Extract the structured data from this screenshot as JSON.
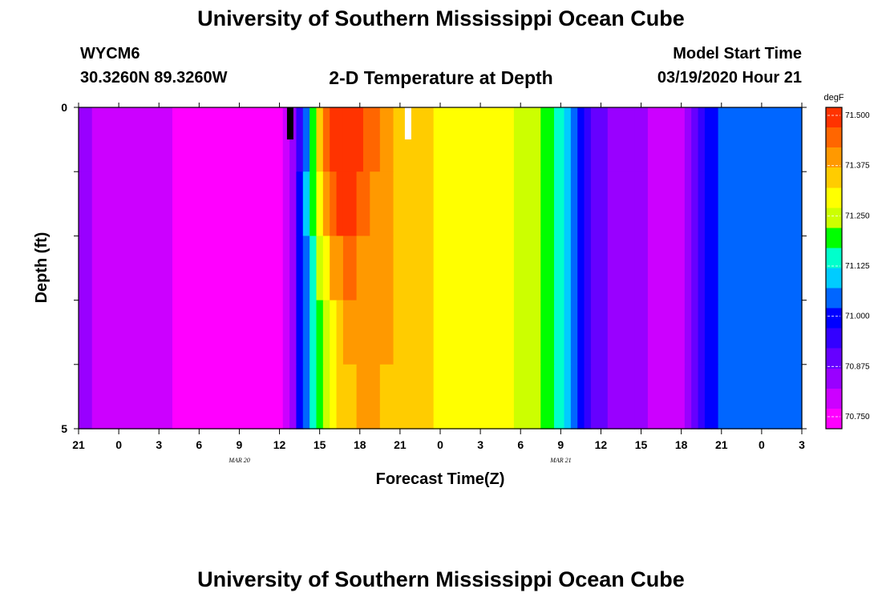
{
  "header": {
    "title": "University of Southern Mississippi Ocean Cube",
    "station_id": "WYCM6",
    "station_coords": "30.3260N 89.3260W",
    "subtitle": "2-D Temperature at Depth",
    "start_label": "Model Start Time",
    "start_value": "03/19/2020 Hour 21"
  },
  "footer": {
    "title": "University of Southern Mississippi Ocean Cube"
  },
  "colors": {
    "palette": [
      "#ff00ff",
      "#cc00ff",
      "#9900ff",
      "#6600ff",
      "#3300ff",
      "#0000ff",
      "#0066ff",
      "#00ccff",
      "#00ffcc",
      "#00ff00",
      "#ccff00",
      "#ffff00",
      "#ffcc00",
      "#ff9900",
      "#ff6600",
      "#ff3300"
    ]
  },
  "chart_data": {
    "type": "heatmap",
    "xlabel": "Forecast Time(Z)",
    "ylabel": "Depth (ft)",
    "ylim": [
      0,
      5
    ],
    "y_ticks": [
      "0",
      "5"
    ],
    "x_tick_labels": [
      "21",
      "0",
      "3",
      "6",
      "9",
      "12",
      "15",
      "18",
      "21",
      "0",
      "3",
      "6",
      "9",
      "12",
      "15",
      "18",
      "21",
      "0",
      "3"
    ],
    "x_tick_hours": [
      0,
      3,
      6,
      9,
      12,
      15,
      18,
      21,
      24,
      27,
      30,
      33,
      36,
      39,
      42,
      45,
      48,
      51,
      54
    ],
    "date_labels": [
      {
        "text": "MAR 20",
        "hour": 15
      },
      {
        "text": "MAR 21",
        "hour": 39
      }
    ],
    "colorbar": {
      "unit": "degF",
      "ticks": [
        "71.500",
        "71.375",
        "71.250",
        "71.125",
        "71.000",
        "70.875",
        "70.750"
      ],
      "min": 70.72,
      "max": 71.52
    },
    "depth_layers": [
      0,
      0.5,
      1.5,
      2.5,
      3.5,
      4.5
    ],
    "hours": [
      0,
      2,
      4,
      6,
      8,
      10,
      12,
      14,
      15,
      15.5,
      16,
      16.5,
      17,
      17.5,
      18,
      18.5,
      19,
      19.5,
      20,
      20.5,
      21,
      21.5,
      22,
      23,
      24,
      25,
      26,
      27,
      28,
      29,
      30,
      31,
      32,
      33,
      34,
      35,
      36,
      36.5,
      37,
      37.5,
      38,
      38.5,
      39,
      40,
      41,
      42,
      43,
      44,
      45,
      45.5,
      46,
      46.5,
      47,
      47.5,
      48,
      49,
      50,
      51,
      52,
      53,
      54
    ],
    "values": [
      [
        70.84,
        70.82,
        70.8,
        70.79,
        70.77,
        70.76,
        70.74,
        70.73,
        70.73,
        70.79,
        70.86,
        70.95,
        71.06,
        71.21,
        71.35,
        71.46,
        71.49,
        71.5,
        71.5,
        71.49,
        71.47,
        71.45,
        71.42,
        71.38,
        71.36,
        71.34,
        71.33,
        71.32,
        71.31,
        71.3,
        71.3,
        71.29,
        71.28,
        71.26,
        71.22,
        71.17,
        71.12,
        71.08,
        71.04,
        71.01,
        70.96,
        70.91,
        70.88,
        70.86,
        70.85,
        70.83,
        70.82,
        70.81,
        70.82,
        70.86,
        70.9,
        70.94,
        70.98,
        71.01,
        71.03,
        71.05,
        71.05,
        71.05,
        71.05,
        71.05,
        71.04
      ],
      [
        70.84,
        70.82,
        70.8,
        70.79,
        70.77,
        70.76,
        70.74,
        70.73,
        70.73,
        70.79,
        70.86,
        70.97,
        71.08,
        71.17,
        71.29,
        71.4,
        71.44,
        71.47,
        71.48,
        71.47,
        71.45,
        71.43,
        71.41,
        71.38,
        71.36,
        71.34,
        71.33,
        71.32,
        71.31,
        71.3,
        71.3,
        71.29,
        71.28,
        71.26,
        71.22,
        71.17,
        71.12,
        71.08,
        71.04,
        71.01,
        70.96,
        70.91,
        70.88,
        70.86,
        70.85,
        70.83,
        70.82,
        70.81,
        70.82,
        70.86,
        70.9,
        70.94,
        70.98,
        71.01,
        71.03,
        71.05,
        71.05,
        71.05,
        71.05,
        71.05,
        71.04
      ],
      [
        70.84,
        70.82,
        70.8,
        70.79,
        70.77,
        70.76,
        70.74,
        70.73,
        70.73,
        70.79,
        70.86,
        70.97,
        71.06,
        71.14,
        71.23,
        71.32,
        71.38,
        71.41,
        71.42,
        71.42,
        71.41,
        71.4,
        71.39,
        71.37,
        71.36,
        71.34,
        71.33,
        71.32,
        71.31,
        71.3,
        71.3,
        71.29,
        71.28,
        71.26,
        71.22,
        71.17,
        71.12,
        71.08,
        71.04,
        71.01,
        70.96,
        70.91,
        70.88,
        70.86,
        70.85,
        70.83,
        70.82,
        70.81,
        70.82,
        70.86,
        70.9,
        70.94,
        70.98,
        71.01,
        71.03,
        71.05,
        71.05,
        71.05,
        71.05,
        71.05,
        71.04
      ],
      [
        70.84,
        70.82,
        70.8,
        70.79,
        70.77,
        70.76,
        70.74,
        70.73,
        70.73,
        70.79,
        70.86,
        70.97,
        71.05,
        71.13,
        71.2,
        71.27,
        71.32,
        71.36,
        71.38,
        71.39,
        71.39,
        71.38,
        71.38,
        71.37,
        71.36,
        71.34,
        71.33,
        71.32,
        71.31,
        71.3,
        71.3,
        71.29,
        71.28,
        71.26,
        71.22,
        71.17,
        71.12,
        71.08,
        71.04,
        71.01,
        70.96,
        70.91,
        70.88,
        70.86,
        70.85,
        70.83,
        70.82,
        70.81,
        70.82,
        70.86,
        70.9,
        70.94,
        70.98,
        71.01,
        71.03,
        71.05,
        71.05,
        71.05,
        71.05,
        71.05,
        71.04
      ],
      [
        70.84,
        70.82,
        70.8,
        70.79,
        70.77,
        70.76,
        70.74,
        70.73,
        70.73,
        70.79,
        70.86,
        70.97,
        71.05,
        71.12,
        71.18,
        71.24,
        71.29,
        71.33,
        71.35,
        71.36,
        71.37,
        71.37,
        71.37,
        71.36,
        71.36,
        71.34,
        71.33,
        71.32,
        71.31,
        71.3,
        71.3,
        71.29,
        71.28,
        71.26,
        71.22,
        71.17,
        71.12,
        71.08,
        71.04,
        71.01,
        70.96,
        70.91,
        70.88,
        70.86,
        70.85,
        70.83,
        70.82,
        70.81,
        70.82,
        70.86,
        70.9,
        70.94,
        70.98,
        71.01,
        71.03,
        71.05,
        71.05,
        71.05,
        71.05,
        71.05,
        71.04
      ],
      [
        70.84,
        70.82,
        70.8,
        70.79,
        70.77,
        70.76,
        70.74,
        70.73,
        70.73,
        70.79,
        70.86,
        70.97,
        71.04,
        71.1,
        71.16,
        71.21,
        71.25,
        71.29,
        71.31,
        71.33,
        71.34,
        71.35,
        71.35,
        71.35,
        71.35,
        71.34,
        71.33,
        71.32,
        71.31,
        71.3,
        71.3,
        71.29,
        71.28,
        71.26,
        71.22,
        71.17,
        71.12,
        71.08,
        71.04,
        71.01,
        70.96,
        70.91,
        70.88,
        70.86,
        70.85,
        70.83,
        70.82,
        70.81,
        70.82,
        70.86,
        70.9,
        70.94,
        70.98,
        71.01,
        71.03,
        71.05,
        71.05,
        71.05,
        71.05,
        71.05,
        71.04
      ]
    ],
    "markers": [
      {
        "name": "min-marker",
        "hour": 15.8,
        "color": "#000000"
      },
      {
        "name": "max-marker",
        "hour": 24.6,
        "color": "#ffffff"
      }
    ]
  }
}
